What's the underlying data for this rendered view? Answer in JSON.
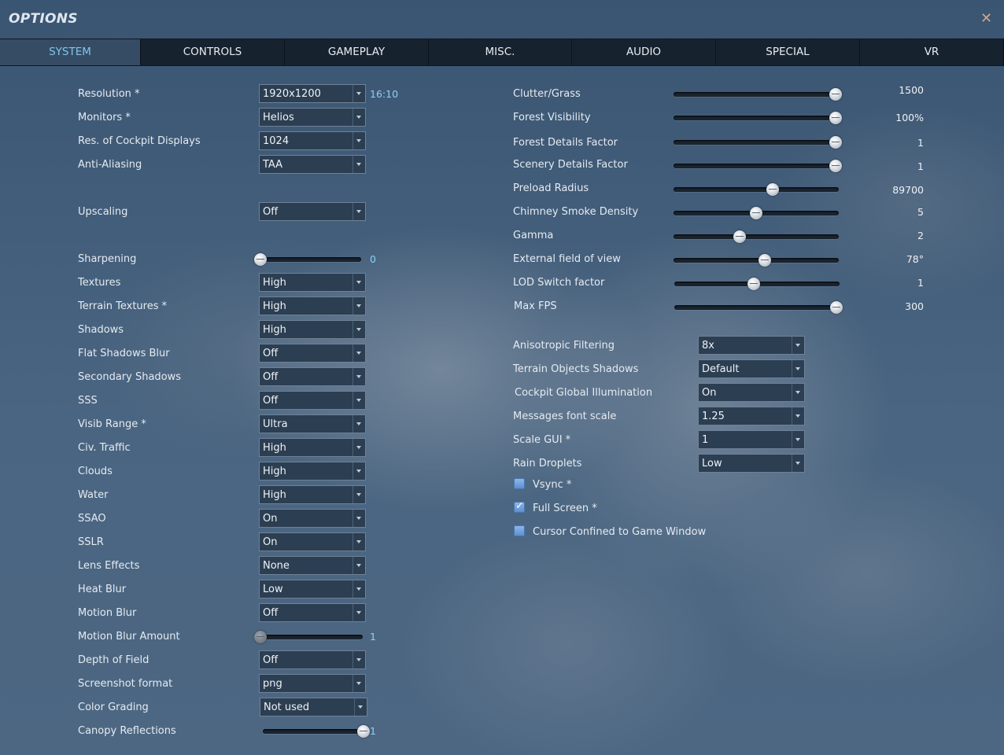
{
  "window": {
    "title": "OPTIONS",
    "close_icon": "close-icon"
  },
  "tabs": [
    {
      "label": "SYSTEM",
      "active": true
    },
    {
      "label": "CONTROLS",
      "active": false
    },
    {
      "label": "GAMEPLAY",
      "active": false
    },
    {
      "label": "MISC.",
      "active": false
    },
    {
      "label": "AUDIO",
      "active": false
    },
    {
      "label": "SPECIAL",
      "active": false
    },
    {
      "label": "VR",
      "active": false
    }
  ],
  "left": {
    "resolution": {
      "label": "Resolution *",
      "value": "1920x1200",
      "aspect": "16:10"
    },
    "monitors": {
      "label": "Monitors *",
      "value": "Helios"
    },
    "cockpit_displays": {
      "label": "Res. of Cockpit Displays",
      "value": "1024"
    },
    "anti_aliasing": {
      "label": "Anti-Aliasing",
      "value": "TAA"
    },
    "upscaling": {
      "label": "Upscaling",
      "value": "Off"
    },
    "sharpening": {
      "label": "Sharpening",
      "value": "0",
      "level": 0
    },
    "textures": {
      "label": "Textures",
      "value": "High"
    },
    "terrain_textures": {
      "label": "Terrain Textures *",
      "value": "High"
    },
    "shadows": {
      "label": "Shadows",
      "value": "High"
    },
    "flat_shadows_blur": {
      "label": "Flat Shadows Blur",
      "value": "Off"
    },
    "secondary_shadows": {
      "label": "Secondary Shadows",
      "value": "Off"
    },
    "sss": {
      "label": "SSS",
      "value": "Off"
    },
    "visib_range": {
      "label": "Visib Range *",
      "value": "Ultra"
    },
    "civ_traffic": {
      "label": "Civ. Traffic",
      "value": "High"
    },
    "clouds": {
      "label": "Clouds",
      "value": "High"
    },
    "water": {
      "label": "Water",
      "value": "High"
    },
    "ssao": {
      "label": "SSAO",
      "value": "On"
    },
    "sslr": {
      "label": "SSLR",
      "value": "On"
    },
    "lens_effects": {
      "label": "Lens Effects",
      "value": "None"
    },
    "heat_blur": {
      "label": "Heat Blur",
      "value": "Low"
    },
    "motion_blur": {
      "label": "Motion Blur",
      "value": "Off"
    },
    "motion_blur_amount": {
      "label": "Motion Blur Amount",
      "value": "1",
      "level": 0
    },
    "depth_of_field": {
      "label": "Depth of Field",
      "value": "Off"
    },
    "screenshot_format": {
      "label": "Screenshot format",
      "value": "png"
    },
    "color_grading": {
      "label": "Color Grading",
      "value": "Not used"
    },
    "canopy_reflections": {
      "label": "Canopy Reflections",
      "value": "1",
      "level": 1
    }
  },
  "right": {
    "clutter_grass": {
      "label": "Clutter/Grass",
      "value": "1500",
      "level": 1.0
    },
    "forest_visibility": {
      "label": "Forest Visibility",
      "value": "100%",
      "level": 1.0
    },
    "forest_details": {
      "label": "Forest Details Factor",
      "value": "1",
      "level": 1.0
    },
    "scenery_details": {
      "label": "Scenery Details Factor",
      "value": "1",
      "level": 1.0
    },
    "preload_radius": {
      "label": "Preload Radius",
      "value": "89700",
      "level": 0.6
    },
    "chimney_smoke": {
      "label": "Chimney Smoke Density",
      "value": "5",
      "level": 0.5
    },
    "gamma": {
      "label": "Gamma",
      "value": "2",
      "level": 0.4
    },
    "external_fov": {
      "label": "External field of view",
      "value": "78°",
      "level": 0.55
    },
    "lod_switch": {
      "label": "LOD Switch factor",
      "value": "1",
      "level": 0.48
    },
    "max_fps": {
      "label": "Max FPS",
      "value": "300",
      "level": 1.0
    },
    "anisotropic": {
      "label": "Anisotropic Filtering",
      "value": "8x"
    },
    "terrain_objects_shadows": {
      "label": "Terrain Objects Shadows",
      "value": "Default"
    },
    "cockpit_gi": {
      "label": "Cockpit Global Illumination",
      "value": "On"
    },
    "messages_font_scale": {
      "label": "Messages font scale",
      "value": "1.25"
    },
    "scale_gui": {
      "label": "Scale GUI *",
      "value": "1"
    },
    "rain_droplets": {
      "label": "Rain Droplets",
      "value": "Low"
    },
    "vsync": {
      "label": "Vsync *",
      "checked": false
    },
    "full_screen": {
      "label": "Full Screen *",
      "checked": true
    },
    "cursor_confined": {
      "label": "Cursor Confined to Game Window",
      "checked": false
    }
  }
}
